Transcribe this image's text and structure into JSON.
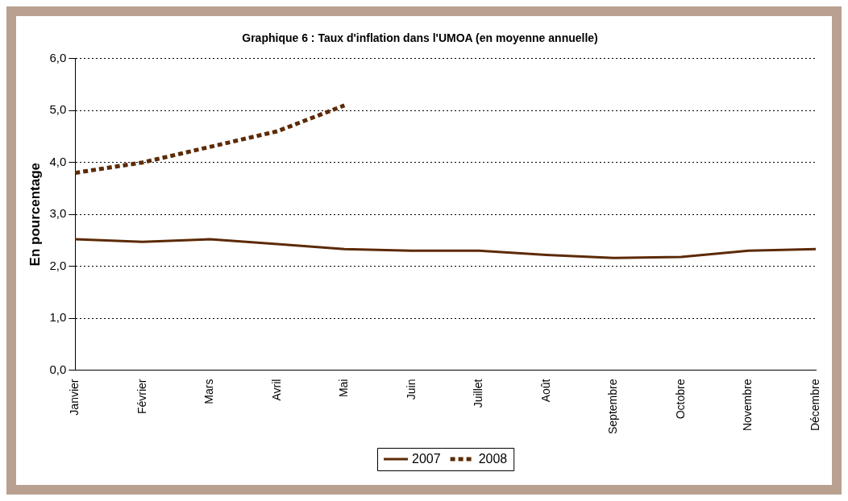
{
  "chart_data": {
    "type": "line",
    "title": "Graphique 6 : Taux d'inflation dans l'UMOA (en moyenne annuelle)",
    "ylabel": "En pourcentage",
    "categories": [
      "Janvier",
      "Février",
      "Mars",
      "Avril",
      "Mai",
      "Juin",
      "Juillet",
      "Août",
      "Septembre",
      "Octobre",
      "Novembre",
      "Décembre"
    ],
    "series": [
      {
        "name": "2007",
        "color": "#5c2a06",
        "line_style": "solid",
        "values": [
          2.52,
          2.47,
          2.52,
          2.43,
          2.33,
          2.3,
          2.3,
          2.22,
          2.16,
          2.18,
          2.3,
          2.33
        ]
      },
      {
        "name": "2008",
        "color": "#5c2a06",
        "line_style": "dashed",
        "values": [
          3.8,
          4.0,
          4.3,
          4.6,
          5.1,
          null,
          null,
          null,
          null,
          null,
          null,
          null
        ]
      }
    ],
    "ylim": [
      0,
      6
    ],
    "yticks": [
      {
        "value": 0,
        "label": "0,0"
      },
      {
        "value": 1,
        "label": "1,0"
      },
      {
        "value": 2,
        "label": "2,0"
      },
      {
        "value": 3,
        "label": "3,0"
      },
      {
        "value": 4,
        "label": "4,0"
      },
      {
        "value": 5,
        "label": "5,0"
      },
      {
        "value": 6,
        "label": "6,0"
      }
    ],
    "grid": "y",
    "legend": "bottom",
    "marker": "none"
  }
}
